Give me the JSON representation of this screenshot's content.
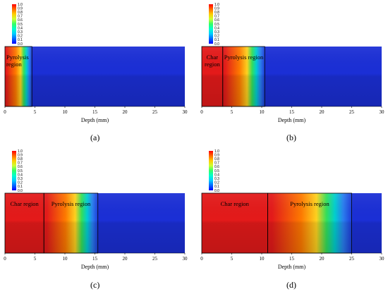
{
  "colorbar_ticks": [
    "1.0",
    "0.9",
    "0.8",
    "0.7",
    "0.6",
    "0.5",
    "0.4",
    "0.3",
    "0.2",
    "0.1",
    "0.0"
  ],
  "axis": {
    "xlabel": "Depth (mm)",
    "xticks": [
      0,
      5,
      10,
      15,
      20,
      25,
      30
    ],
    "xlim": [
      0,
      30
    ]
  },
  "panels": [
    {
      "caption": "(a)",
      "char_end_mm": 0,
      "pyro_end_mm": 4.5,
      "char_label": "",
      "pyro_label_lines": [
        "Pyrolysis",
        "region"
      ]
    },
    {
      "caption": "(b)",
      "char_end_mm": 3.5,
      "pyro_end_mm": 10.5,
      "char_label_lines": [
        "Char",
        "region"
      ],
      "pyro_label_lines": [
        "Pyrolysis region"
      ]
    },
    {
      "caption": "(c)",
      "char_end_mm": 6.5,
      "pyro_end_mm": 15.5,
      "char_label_lines": [
        "Char region"
      ],
      "pyro_label_lines": [
        "Pyrolysis region"
      ]
    },
    {
      "caption": "(d)",
      "char_end_mm": 11,
      "pyro_end_mm": 25,
      "char_label_lines": [
        "Char region"
      ],
      "pyro_label_lines": [
        "Pyrolysis region"
      ]
    }
  ],
  "colors": {
    "virgin": "#1b2fd6",
    "char": "#e41a1a",
    "colorbar": [
      "#ff0000",
      "#ff6a00",
      "#ffcc00",
      "#ccff33",
      "#33ff66",
      "#00ffcc",
      "#00ccff",
      "#0066ff",
      "#0000ff"
    ]
  }
}
